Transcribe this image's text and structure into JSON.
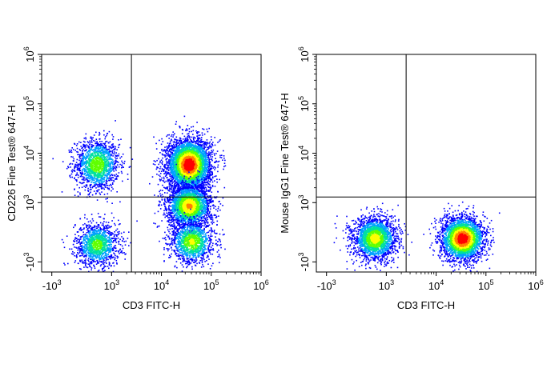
{
  "chart_data": [
    {
      "type": "scatter",
      "style": "flow-cytometry-density",
      "xlabel": "CD3 FITC-H",
      "ylabel": "CD226 Fine Test® 647-H",
      "x_ticks": [
        {
          "base": "-10",
          "exp": "3",
          "value": -1000
        },
        {
          "base": "10",
          "exp": "3",
          "value": 1000
        },
        {
          "base": "10",
          "exp": "4",
          "value": 10000
        },
        {
          "base": "10",
          "exp": "5",
          "value": 100000
        },
        {
          "base": "10",
          "exp": "6",
          "value": 1000000
        }
      ],
      "y_ticks": [
        {
          "base": "-10",
          "exp": "3",
          "value": -1000
        },
        {
          "base": "10",
          "exp": "3",
          "value": 1000
        },
        {
          "base": "10",
          "exp": "4",
          "value": 10000
        },
        {
          "base": "10",
          "exp": "5",
          "value": 100000
        },
        {
          "base": "10",
          "exp": "6",
          "value": 1000000
        }
      ],
      "quadrant_gate": {
        "x": 2500,
        "y": 1300
      },
      "populations": [
        {
          "x_center": 500,
          "y_center": 6000,
          "events": 1500,
          "peak_intensity": 0.55
        },
        {
          "x_center": 500,
          "y_center": -400,
          "events": 1300,
          "peak_intensity": 0.5
        },
        {
          "x_center": 35000,
          "y_center": 6000,
          "events": 4200,
          "peak_intensity": 1.0
        },
        {
          "x_center": 35000,
          "y_center": 900,
          "events": 2400,
          "peak_intensity": 0.75
        },
        {
          "x_center": 40000,
          "y_center": -300,
          "events": 1300,
          "peak_intensity": 0.6
        }
      ]
    },
    {
      "type": "scatter",
      "style": "flow-cytometry-density",
      "xlabel": "CD3 FITC-H",
      "ylabel": "Mouse IgG1 Fine Test® 647-H",
      "x_ticks": [
        {
          "base": "-10",
          "exp": "3",
          "value": -1000
        },
        {
          "base": "10",
          "exp": "3",
          "value": 1000
        },
        {
          "base": "10",
          "exp": "4",
          "value": 10000
        },
        {
          "base": "10",
          "exp": "5",
          "value": 100000
        },
        {
          "base": "10",
          "exp": "6",
          "value": 1000000
        }
      ],
      "y_ticks": [
        {
          "base": "-10",
          "exp": "3",
          "value": -1000
        },
        {
          "base": "10",
          "exp": "3",
          "value": 1000
        },
        {
          "base": "10",
          "exp": "4",
          "value": 10000
        },
        {
          "base": "10",
          "exp": "5",
          "value": 100000
        },
        {
          "base": "10",
          "exp": "6",
          "value": 1000000
        }
      ],
      "quadrant_gate": {
        "x": 2500,
        "y": 1300
      },
      "populations": [
        {
          "x_center": 600,
          "y_center": -200,
          "events": 2200,
          "peak_intensity": 0.65
        },
        {
          "x_center": 33000,
          "y_center": -200,
          "events": 2800,
          "peak_intensity": 1.0
        }
      ]
    }
  ],
  "colors": {
    "density_scale": [
      "#0000ff",
      "#00a0ff",
      "#00e0a0",
      "#60ff00",
      "#ffff00",
      "#ff8000",
      "#ff0000"
    ],
    "frame": "#000000",
    "gate": "#000000"
  }
}
